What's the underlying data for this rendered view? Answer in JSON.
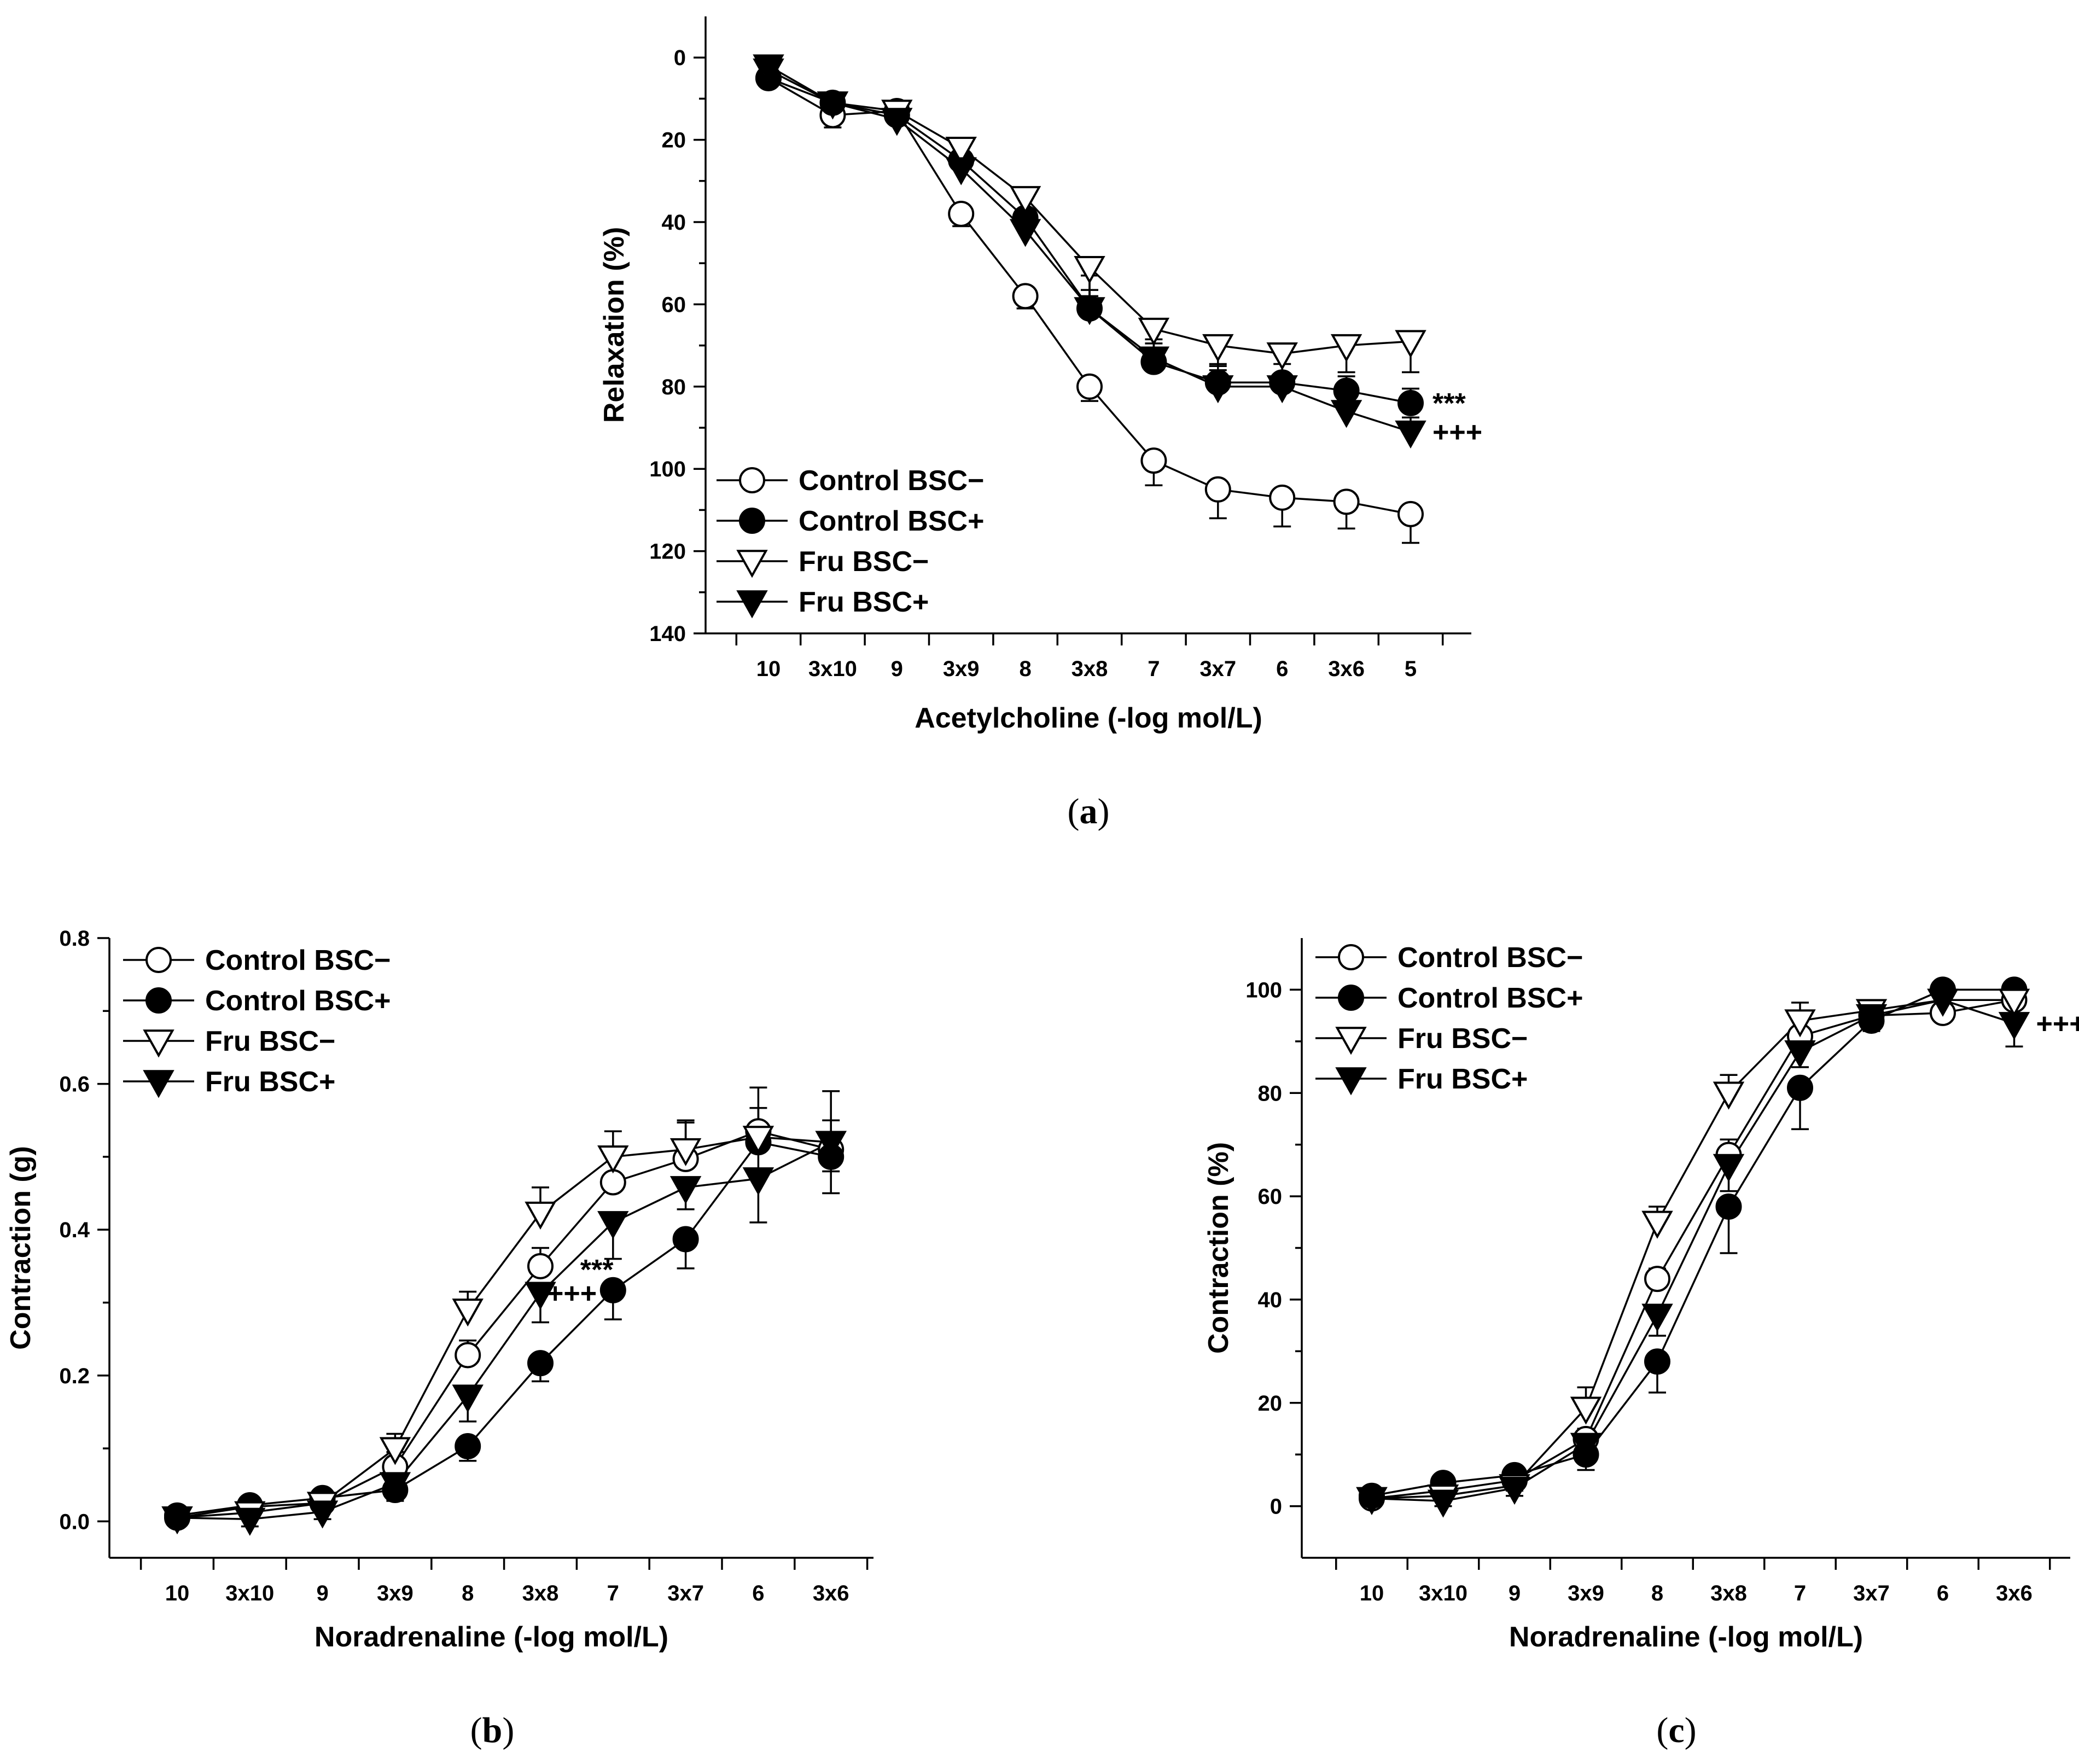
{
  "chart_data": [
    {
      "id": "a",
      "type": "line",
      "panel_label": "a",
      "xlabel": "Acetylcholine (-log mol/L)",
      "ylabel": "Relaxation (%)",
      "ylim": [
        140,
        -10
      ],
      "yticks": [
        0,
        20,
        40,
        60,
        80,
        100,
        120,
        140
      ],
      "categories": [
        "10",
        "3x10",
        "9",
        "3x9",
        "8",
        "3x8",
        "7",
        "3x7",
        "6",
        "3x6",
        "5"
      ],
      "legend_position": "bottom-left",
      "series": [
        {
          "name": "Control BSC−",
          "marker": "circle-open",
          "values": [
            5,
            14,
            13,
            38,
            58,
            80,
            98,
            105,
            107,
            108,
            111
          ],
          "errors": [
            2,
            3,
            2,
            3,
            3,
            3.5,
            6,
            7,
            7,
            6.5,
            7
          ]
        },
        {
          "name": "Control BSC+",
          "marker": "circle-filled",
          "values": [
            5,
            11,
            14,
            25,
            39,
            61,
            74,
            79,
            79,
            81,
            84
          ],
          "errors": [
            2,
            2.5,
            3,
            5,
            5,
            4.5,
            4.5,
            4.5,
            4.5,
            3.5,
            3.5
          ]
        },
        {
          "name": "Fru BSC−",
          "marker": "triangle-open",
          "values": [
            3,
            11,
            13,
            22,
            34,
            51,
            66,
            70,
            72,
            70,
            69
          ],
          "errors": [
            2,
            2.5,
            3,
            5,
            7,
            7,
            5,
            5,
            5,
            6.5,
            7.5
          ]
        },
        {
          "name": "Fru BSC+",
          "marker": "triangle-filled",
          "values": [
            2,
            11,
            15,
            27,
            42,
            61,
            73,
            80,
            80,
            86,
            91
          ],
          "errors": [
            2,
            2.5,
            3,
            5,
            8,
            8,
            4.5,
            4,
            3,
            3,
            3.5
          ]
        }
      ],
      "annotations": [
        {
          "text": "***",
          "series": "Control BSC+",
          "category": "5"
        },
        {
          "text": "+++",
          "series": "Fru BSC+",
          "category": "5"
        }
      ]
    },
    {
      "id": "b",
      "type": "line",
      "panel_label": "b",
      "xlabel": "Noradrenaline (-log mol/L)",
      "ylabel": "Contraction (g)",
      "ylim": [
        -0.05,
        0.8
      ],
      "yticks": [
        0.0,
        0.2,
        0.4,
        0.6,
        0.8
      ],
      "ytick_labels": [
        "0.0",
        "0.2",
        "0.4",
        "0.6",
        "0.8"
      ],
      "categories": [
        "10",
        "3x10",
        "9",
        "3x9",
        "8",
        "3x8",
        "7",
        "3x7",
        "6",
        "3x6"
      ],
      "legend_position": "top-left",
      "series": [
        {
          "name": "Control BSC−",
          "marker": "circle-open",
          "values": [
            0.005,
            0.02,
            0.025,
            0.075,
            0.228,
            0.35,
            0.465,
            0.497,
            0.535,
            0.51
          ],
          "errors": [
            0.005,
            0.01,
            0.01,
            0.02,
            0.02,
            0.025,
            0.035,
            0.05,
            0.06,
            0.04
          ]
        },
        {
          "name": "Control BSC+",
          "marker": "circle-filled",
          "values": [
            0.008,
            0.022,
            0.032,
            0.043,
            0.103,
            0.217,
            0.317,
            0.387,
            0.52,
            0.5
          ],
          "errors": [
            0.005,
            0.012,
            0.012,
            0.015,
            0.02,
            0.025,
            0.04,
            0.04,
            0.05,
            0.05
          ]
        },
        {
          "name": "Fru BSC−",
          "marker": "triangle-open",
          "values": [
            0.005,
            0.012,
            0.025,
            0.1,
            0.29,
            0.423,
            0.5,
            0.51,
            0.527,
            0.52
          ],
          "errors": [
            0.005,
            0.01,
            0.01,
            0.02,
            0.025,
            0.035,
            0.035,
            0.04,
            0.04,
            0.07
          ]
        },
        {
          "name": "Fru BSC+",
          "marker": "triangle-filled",
          "values": [
            0.005,
            0.003,
            0.013,
            0.052,
            0.172,
            0.313,
            0.41,
            0.458,
            0.47,
            0.52
          ],
          "errors": [
            0.005,
            0.01,
            0.01,
            0.015,
            0.035,
            0.04,
            0.05,
            0.03,
            0.06,
            0.04
          ]
        }
      ],
      "annotations": [
        {
          "text": "+++",
          "series": "Fru BSC+",
          "category": "3x8"
        },
        {
          "text": "***",
          "series": "Control BSC+",
          "category": "7"
        }
      ]
    },
    {
      "id": "c",
      "type": "line",
      "panel_label": "c",
      "xlabel": "Noradrenaline (-log mol/L)",
      "ylabel": "Contraction (%)",
      "ylim": [
        -10,
        110
      ],
      "yticks": [
        0,
        20,
        40,
        60,
        80,
        100
      ],
      "categories": [
        "10",
        "3x10",
        "9",
        "3x9",
        "8",
        "3x8",
        "7",
        "3x7",
        "6",
        "3x6"
      ],
      "legend_position": "top-left",
      "series": [
        {
          "name": "Control BSC−",
          "marker": "circle-open",
          "values": [
            1.5,
            3,
            5,
            13,
            44,
            68,
            91,
            95,
            95.5,
            98
          ],
          "errors": [
            1,
            1.5,
            1.5,
            2,
            2,
            3,
            3,
            2,
            1.5,
            1.5
          ]
        },
        {
          "name": "Control BSC+",
          "marker": "circle-filled",
          "values": [
            2,
            4.5,
            6,
            10,
            28,
            58,
            81,
            94,
            100,
            100
          ],
          "errors": [
            1,
            3,
            3,
            3,
            6,
            9,
            8,
            2,
            1,
            1
          ]
        },
        {
          "name": "Fru BSC−",
          "marker": "triangle-open",
          "values": [
            1.5,
            2,
            4,
            19,
            55,
            80,
            94,
            96,
            98,
            98
          ],
          "errors": [
            1,
            1,
            1.5,
            4,
            3,
            3.5,
            3.5,
            2,
            1.5,
            1.5
          ]
        },
        {
          "name": "Fru BSC+",
          "marker": "triangle-filled",
          "values": [
            1.5,
            1,
            3.5,
            12,
            37,
            66,
            88,
            95,
            98,
            93.5
          ],
          "errors": [
            1,
            1,
            1.5,
            3,
            4,
            5,
            3,
            2,
            1.5,
            4.5
          ]
        }
      ],
      "annotations": [
        {
          "text": "+++",
          "series": "Fru BSC+",
          "category": "3x6"
        }
      ]
    }
  ]
}
